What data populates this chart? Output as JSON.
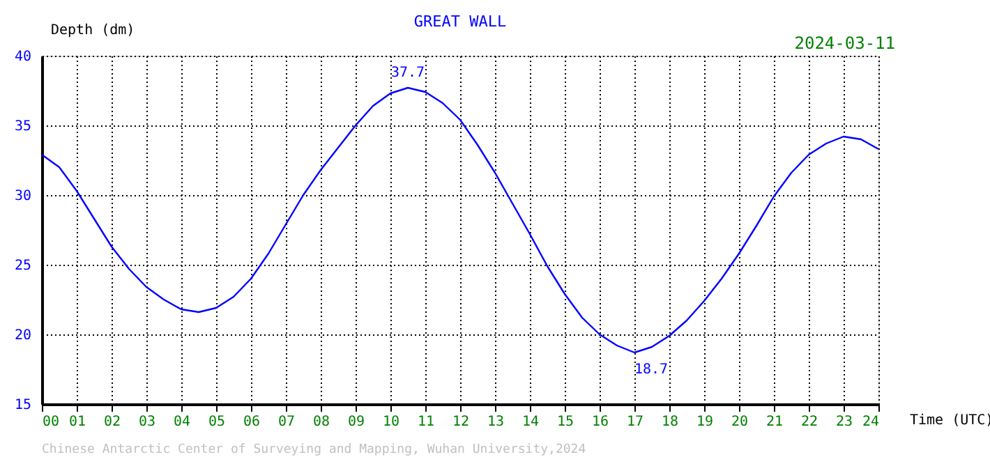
{
  "chart_data": {
    "type": "line",
    "title": "GREAT WALL",
    "xlabel": "Time (UTC)",
    "ylabel": "Depth (dm)",
    "x": [
      0,
      0.5,
      1,
      1.5,
      2,
      2.5,
      3,
      3.5,
      4,
      4.5,
      5,
      5.5,
      6,
      6.5,
      7,
      7.5,
      8,
      8.5,
      9,
      9.5,
      10,
      10.5,
      11,
      11.5,
      12,
      12.5,
      13,
      13.5,
      14,
      14.5,
      15,
      15.5,
      16,
      16.5,
      17,
      17.5,
      18,
      18.5,
      19,
      19.5,
      20,
      20.5,
      21,
      21.5,
      22,
      22.5,
      23,
      23.5,
      24
    ],
    "series": [
      {
        "color": "#0000ff",
        "values": [
          32.9,
          32.0,
          30.3,
          28.3,
          26.3,
          24.7,
          23.4,
          22.5,
          21.8,
          21.6,
          21.9,
          22.7,
          24.0,
          25.8,
          27.9,
          30.0,
          31.8,
          33.4,
          35.0,
          36.4,
          37.3,
          37.7,
          37.4,
          36.6,
          35.4,
          33.6,
          31.6,
          29.4,
          27.2,
          24.9,
          22.9,
          21.2,
          20.0,
          19.2,
          18.7,
          19.1,
          19.9,
          21.0,
          22.4,
          24.0,
          25.8,
          27.8,
          29.9,
          31.6,
          32.9,
          33.7,
          34.2,
          34.0,
          33.3
        ]
      }
    ],
    "xlim": [
      0,
      24
    ],
    "xticks": [
      {
        "value": 0,
        "label": "00"
      },
      {
        "value": 1,
        "label": "01"
      },
      {
        "value": 2,
        "label": "02"
      },
      {
        "value": 3,
        "label": "03"
      },
      {
        "value": 4,
        "label": "04"
      },
      {
        "value": 5,
        "label": "05"
      },
      {
        "value": 6,
        "label": "06"
      },
      {
        "value": 7,
        "label": "07"
      },
      {
        "value": 8,
        "label": "08"
      },
      {
        "value": 9,
        "label": "09"
      },
      10,
      11,
      12,
      13,
      14,
      15,
      16,
      17,
      18,
      19,
      20,
      21,
      22,
      23,
      24
    ],
    "ylim": [
      15,
      40
    ],
    "yticks": [
      15,
      20,
      25,
      30,
      35,
      40
    ],
    "grid": true,
    "line_style": "solid",
    "marker": "none",
    "annotations": [
      {
        "text": "37.7",
        "x": 10.5,
        "y": 37.7
      },
      {
        "text": "18.7",
        "x": 17,
        "y": 18.7
      },
      "2024-03-11",
      "Chinese Antarctic Center of Surveying and Mapping, Wuhan University,2024"
    ]
  }
}
